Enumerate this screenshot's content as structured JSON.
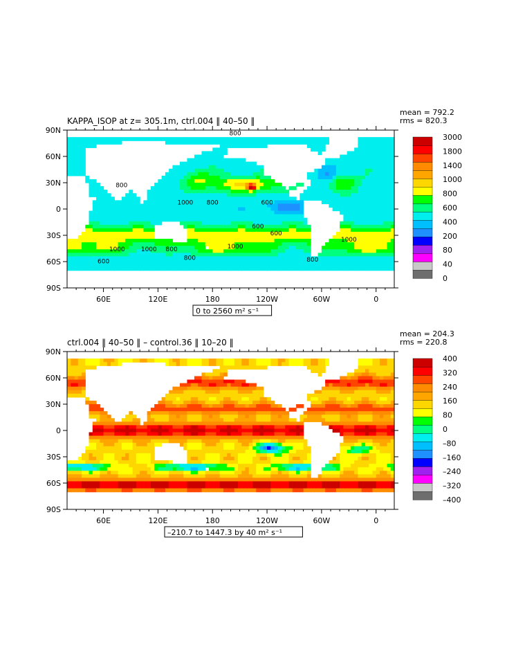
{
  "chart_data": [
    {
      "type": "heatmap",
      "title": "KAPPA_ISOP at z= 305.1m, ctrl.004 ‖ 40–50 ‖",
      "stats": [
        "mean = 792.2",
        "rms = 820.3"
      ],
      "range_label": "0 to 2560 m² s⁻¹",
      "xlabel": "",
      "ylabel": "",
      "x_ticks": [
        "60E",
        "120E",
        "180",
        "120W",
        "60W",
        "0"
      ],
      "y_ticks": [
        "90N",
        "60N",
        "30N",
        "0",
        "30S",
        "60S",
        "90S"
      ],
      "colorbar_levels": [
        "3000",
        "1800",
        "1400",
        "1000",
        "800",
        "600",
        "400",
        "200",
        "80",
        "40",
        "0"
      ],
      "contour_labels": [
        "800",
        "800",
        "1000",
        "800",
        "600",
        "600",
        "1000",
        "1000",
        "800",
        "600",
        "800",
        "1000",
        "1000",
        "600",
        "800"
      ],
      "colors": [
        "#6e6e6e",
        "#c8c8c8",
        "#ff00ff",
        "#a020f0",
        "#0000ff",
        "#1e90ff",
        "#00bfff",
        "#00eeee",
        "#00ff7f",
        "#00ff00",
        "#ffff00",
        "#ffd700",
        "#ffa500",
        "#ff8c00",
        "#ff4500",
        "#ff0000",
        "#cd0000"
      ]
    },
    {
      "type": "heatmap",
      "title": "ctrl.004 ‖ 40–50 ‖ – control.36 ‖ 10–20 ‖",
      "stats": [
        "mean = 204.3",
        "rms = 220.8"
      ],
      "range_label": "–210.7 to 1447.3 by 40 m² s⁻¹",
      "xlabel": "",
      "ylabel": "",
      "x_ticks": [
        "60E",
        "120E",
        "180",
        "120W",
        "60W",
        "0"
      ],
      "y_ticks": [
        "90N",
        "60N",
        "30N",
        "0",
        "30S",
        "60S",
        "90S"
      ],
      "colorbar_levels": [
        "400",
        "320",
        "240",
        "160",
        "80",
        "0",
        "–80",
        "–160",
        "–240",
        "–320",
        "–400"
      ],
      "colors": [
        "#6e6e6e",
        "#c8c8c8",
        "#ff00ff",
        "#a020f0",
        "#0000ff",
        "#1e90ff",
        "#00bfff",
        "#00eeee",
        "#00ff7f",
        "#00ff00",
        "#ffff00",
        "#ffd700",
        "#ffa500",
        "#ff8c00",
        "#ff4500",
        "#ff0000",
        "#cd0000"
      ]
    }
  ]
}
